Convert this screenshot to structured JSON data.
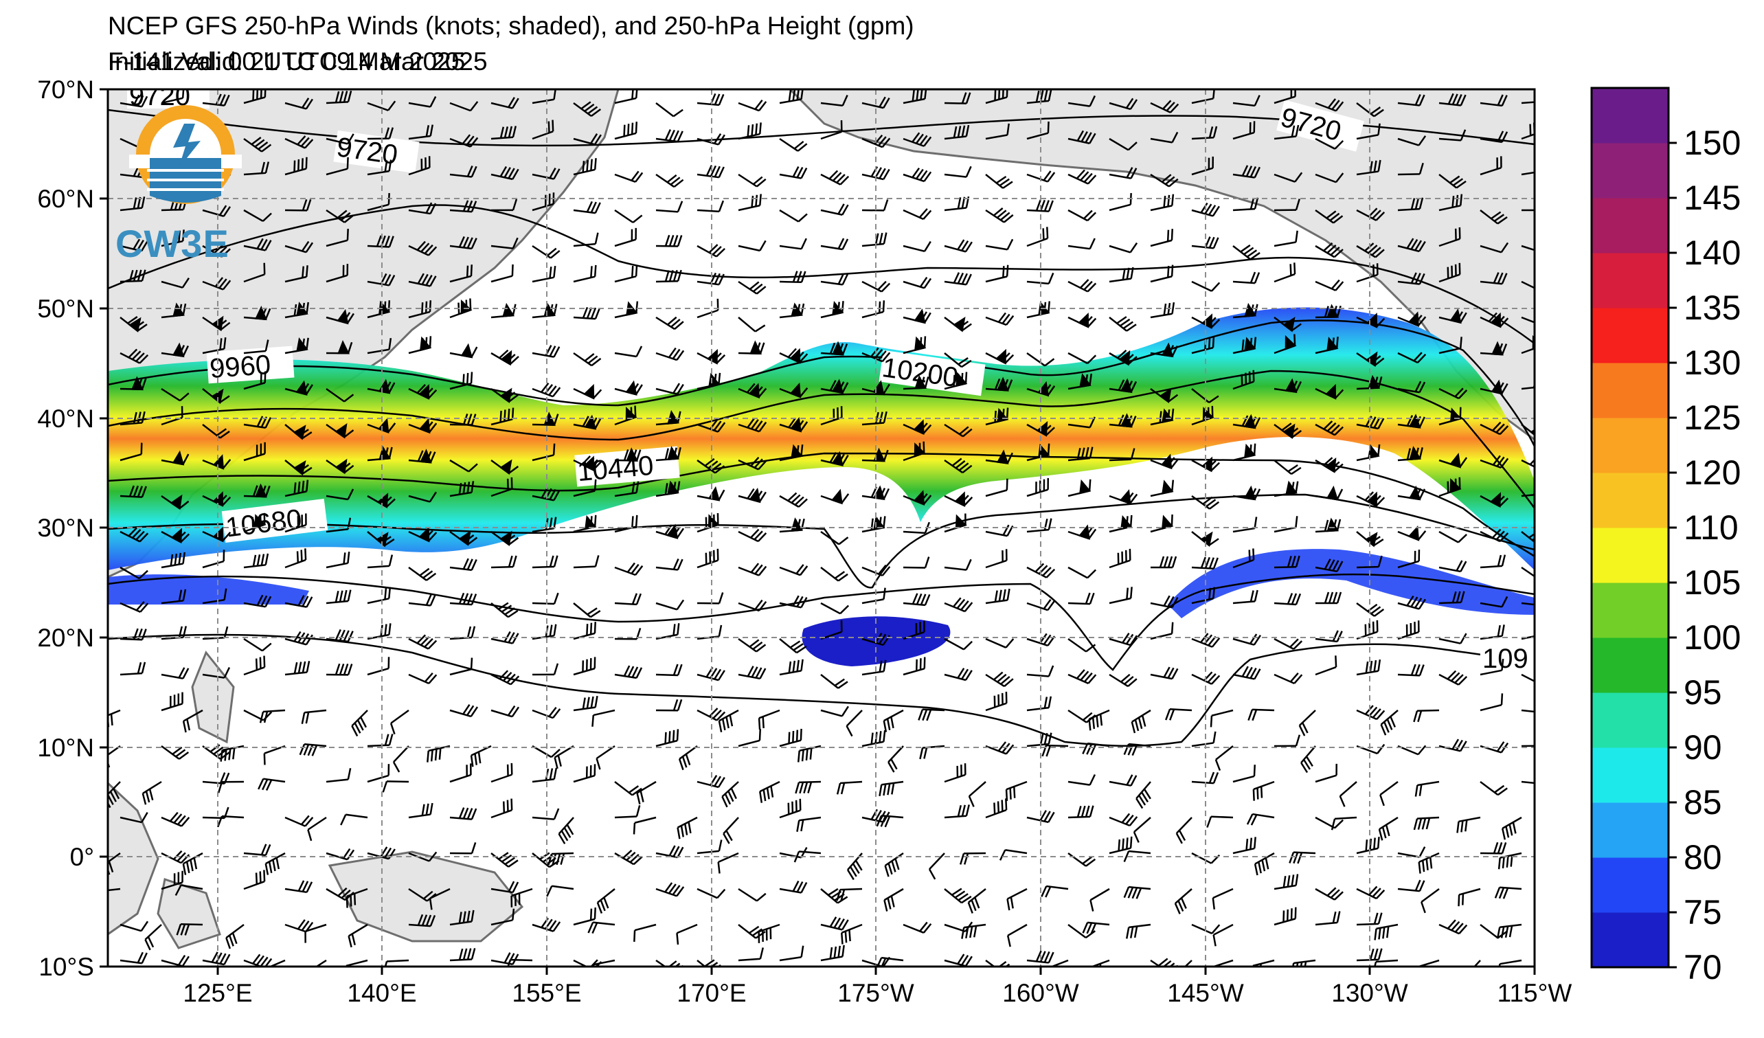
{
  "header": {
    "title": "NCEP GFS 250-hPa Winds (knots; shaded), and 250-hPa Height (gpm)",
    "initialized": "Initialized: 00 UTC 09 Mar 2025",
    "valid": "F-141  Valid: 21 UTC 14 Mar 2025"
  },
  "map": {
    "lat_labels": [
      "70°N",
      "60°N",
      "50°N",
      "40°N",
      "30°N",
      "20°N",
      "10°N",
      "0°",
      "10°S"
    ],
    "lon_labels": [
      "125°E",
      "140°E",
      "155°E",
      "170°E",
      "175°W",
      "160°W",
      "145°W",
      "130°W",
      "115°W"
    ],
    "contour_labels": [
      "9720",
      "9720",
      "9960",
      "10200",
      "10440",
      "10680",
      "9720",
      "109"
    ],
    "land_color": "#e5e5e5",
    "coast_color": "#6e6e6e",
    "grid_color": "#8c8c8c"
  },
  "colorbar": {
    "ticks": [
      "150",
      "145",
      "140",
      "135",
      "130",
      "125",
      "120",
      "110",
      "105",
      "100",
      "95",
      "90",
      "85",
      "80",
      "75",
      "70"
    ],
    "colors": [
      "#1b1fc7",
      "#2246f5",
      "#25a4f5",
      "#1ee9ea",
      "#22e0a8",
      "#24b82a",
      "#72cf28",
      "#f4f51e",
      "#f8c322",
      "#faa221",
      "#f87a1e",
      "#f6201c",
      "#d71e3c",
      "#a71d60",
      "#8e2177",
      "#6a1d8a"
    ]
  },
  "logo": {
    "text": "CW3E"
  }
}
